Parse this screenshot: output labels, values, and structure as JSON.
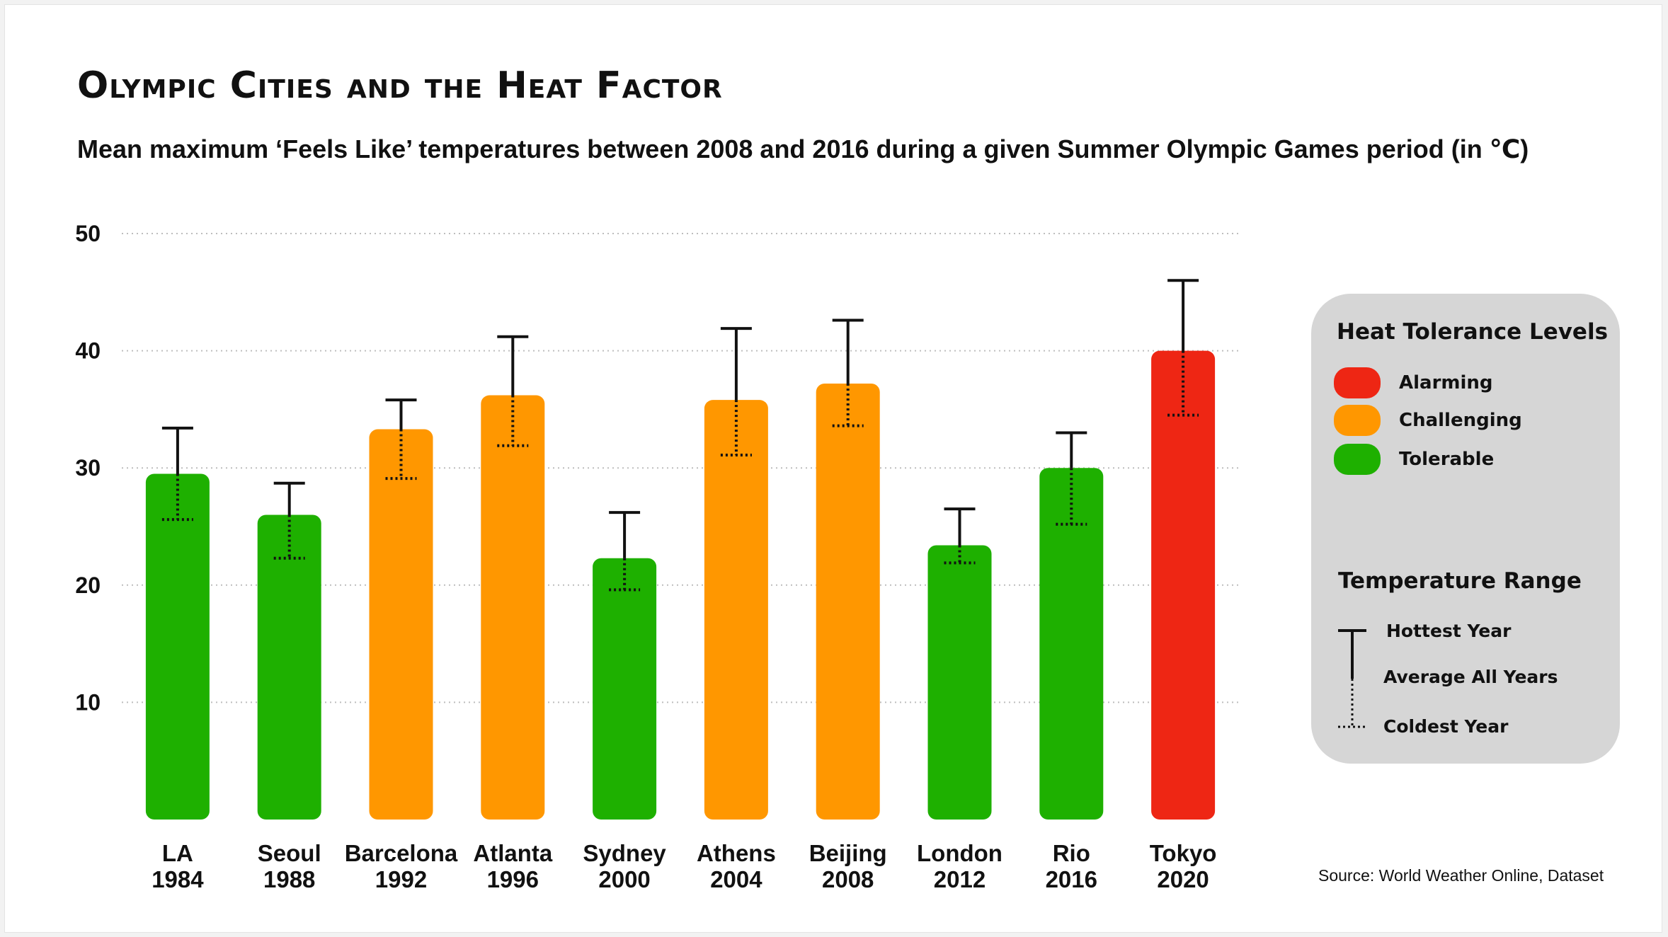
{
  "title": "Olympic Cities and the Heat Factor",
  "subtitle": "Mean maximum ‘Feels Like’ temperatures between 2008 and 2016 during a given Summer Olympic Games period (in ℃)",
  "source": "Source:  World Weather Online, Dataset",
  "colors": {
    "alarming": "#ee2614",
    "challenging": "#ff9700",
    "tolerable": "#1eb000",
    "legend_bg": "#d6d6d6",
    "grid": "#bdbdbd"
  },
  "legend": {
    "levels_heading": "Heat Tolerance Levels",
    "levels": [
      {
        "label": "Alarming",
        "color": "#ee2614"
      },
      {
        "label": "Challenging",
        "color": "#ff9700"
      },
      {
        "label": "Tolerable",
        "color": "#1eb000"
      }
    ],
    "range_heading": "Temperature Range",
    "range_items": [
      {
        "label": "Hottest Year",
        "icon": "solid-tbar-icon"
      },
      {
        "label": "Average All Years",
        "icon": "range-line-icon"
      },
      {
        "label": "Coldest Year",
        "icon": "dotted-bar-icon"
      }
    ]
  },
  "chart_data": {
    "type": "bar",
    "title": "Olympic Cities and the Heat Factor",
    "subtitle": "Mean maximum ‘Feels Like’ temperatures between 2008 and 2016 during a given Summer Olympic Games period (in ℃)",
    "ylim": [
      0,
      50
    ],
    "yticks": [
      10,
      20,
      30,
      40,
      50
    ],
    "grid": true,
    "legend_position": "right",
    "categories": [
      {
        "city": "LA",
        "year": "1984"
      },
      {
        "city": "Seoul",
        "year": "1988"
      },
      {
        "city": "Barcelona",
        "year": "1992"
      },
      {
        "city": "Atlanta",
        "year": "1996"
      },
      {
        "city": "Sydney",
        "year": "2000"
      },
      {
        "city": "Athens",
        "year": "2004"
      },
      {
        "city": "Beijing",
        "year": "2008"
      },
      {
        "city": "London",
        "year": "2012"
      },
      {
        "city": "Rio",
        "year": "2016"
      },
      {
        "city": "Tokyo",
        "year": "2020"
      }
    ],
    "average": [
      29.5,
      26.0,
      33.3,
      36.2,
      22.3,
      35.8,
      37.2,
      23.4,
      30.0,
      40.0
    ],
    "hottest": [
      33.4,
      28.7,
      35.8,
      41.2,
      26.2,
      41.9,
      42.6,
      26.5,
      33.0,
      46.0
    ],
    "coldest": [
      25.6,
      22.3,
      29.1,
      31.9,
      19.6,
      31.1,
      33.6,
      21.9,
      25.2,
      34.5
    ],
    "levels": [
      "Tolerable",
      "Tolerable",
      "Challenging",
      "Challenging",
      "Tolerable",
      "Challenging",
      "Challenging",
      "Tolerable",
      "Tolerable",
      "Alarming"
    ]
  }
}
